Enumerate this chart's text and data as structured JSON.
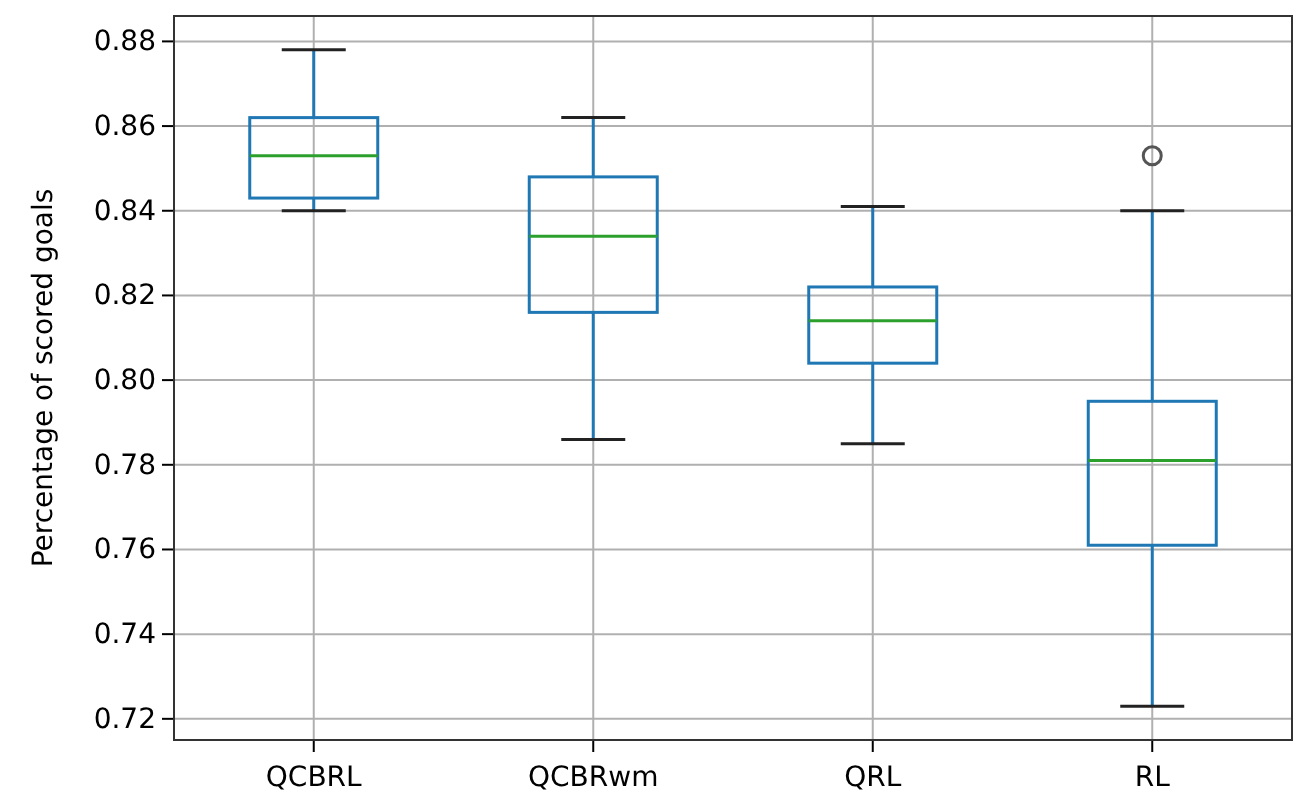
{
  "chart_data": {
    "type": "box",
    "ylabel": "Percentage of scored goals",
    "categories": [
      "QCBRL",
      "QCBRwm",
      "QRL",
      "RL"
    ],
    "boxes": [
      {
        "low": 0.84,
        "q1": 0.843,
        "median": 0.853,
        "q3": 0.862,
        "high": 0.878
      },
      {
        "low": 0.786,
        "q1": 0.816,
        "median": 0.834,
        "q3": 0.848,
        "high": 0.862
      },
      {
        "low": 0.785,
        "q1": 0.804,
        "median": 0.814,
        "q3": 0.822,
        "high": 0.841
      },
      {
        "low": 0.723,
        "q1": 0.761,
        "median": 0.781,
        "q3": 0.795,
        "high": 0.84,
        "outliers": [
          0.853
        ]
      }
    ],
    "color": "#1f77b4",
    "ylim": [
      0.715,
      0.886
    ],
    "yticks": [
      {
        "value": 0.72,
        "label": "0.72"
      },
      {
        "value": 0.74,
        "label": "0.74"
      },
      {
        "value": 0.76,
        "label": "0.76"
      },
      {
        "value": 0.78,
        "label": "0.78"
      },
      {
        "value": 0.8,
        "label": "0.80"
      },
      {
        "value": 0.82,
        "label": "0.82"
      },
      {
        "value": 0.84,
        "label": "0.84"
      },
      {
        "value": 0.86,
        "label": "0.86"
      },
      {
        "value": 0.88,
        "label": "0.88"
      }
    ],
    "grid": true
  }
}
